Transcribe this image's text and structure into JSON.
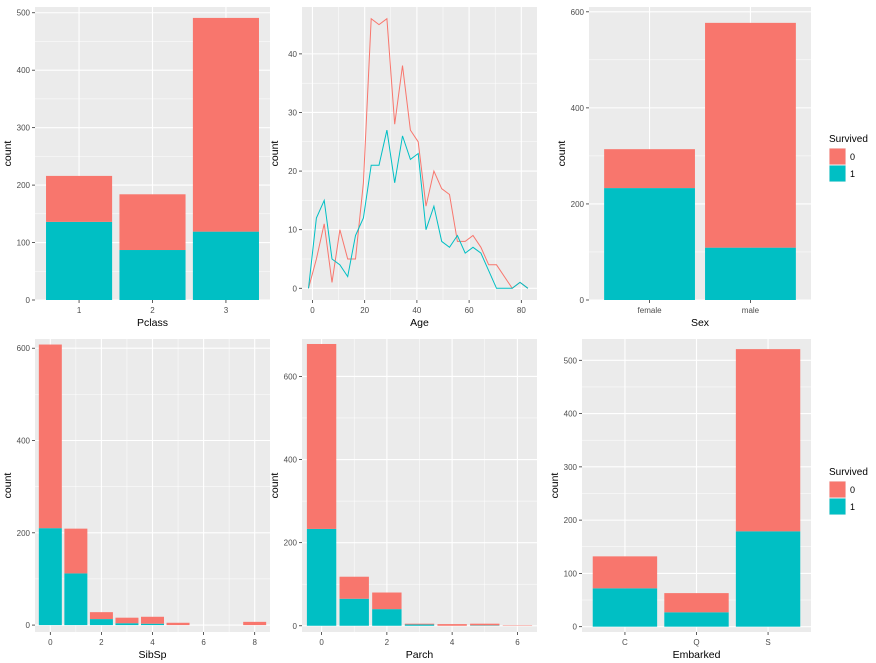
{
  "colors": {
    "died": "#F8766D",
    "survived": "#00BFC4",
    "panel": "#EBEBEB",
    "grid": "#FFFFFF"
  },
  "chart_data": [
    {
      "id": "pclass",
      "type": "bar",
      "xlabel": "Pclass",
      "ylabel": "count",
      "categories": [
        "1",
        "2",
        "3"
      ],
      "ylim": [
        0,
        510
      ],
      "yticks": [
        0,
        100,
        200,
        300,
        400,
        500
      ],
      "series": [
        {
          "name": "0",
          "values": [
            80,
            97,
            372
          ]
        },
        {
          "name": "1",
          "values": [
            136,
            87,
            119
          ]
        }
      ]
    },
    {
      "id": "age",
      "type": "line",
      "xlabel": "Age",
      "ylabel": "count",
      "xlim": [
        -4,
        86
      ],
      "ylim": [
        -2,
        48
      ],
      "xticks": [
        0,
        20,
        40,
        60,
        80
      ],
      "yticks": [
        0,
        10,
        20,
        30,
        40
      ],
      "x": [
        -1.5,
        1.5,
        4.5,
        7.5,
        10.5,
        13.5,
        16.5,
        19.5,
        22.5,
        25.5,
        28.5,
        31.5,
        34.5,
        37.5,
        40.5,
        43.5,
        46.5,
        49.5,
        52.5,
        55.5,
        58.5,
        61.5,
        64.5,
        67.5,
        70.5,
        73.5,
        76.5,
        79.5,
        82.5
      ],
      "series": [
        {
          "name": "0",
          "values": [
            0,
            5,
            11,
            1,
            10,
            5,
            5,
            18,
            46,
            45,
            46,
            28,
            38,
            27,
            25,
            14,
            20,
            17,
            16,
            8,
            8,
            9,
            7,
            4,
            4,
            2,
            0,
            1,
            0
          ]
        },
        {
          "name": "1",
          "values": [
            0,
            12,
            15,
            5,
            4,
            2,
            9,
            12,
            21,
            21,
            27,
            18,
            26,
            22,
            23,
            10,
            14,
            8,
            7,
            9,
            6,
            7,
            6,
            3,
            0,
            0,
            0,
            1,
            0
          ]
        }
      ]
    },
    {
      "id": "sex",
      "type": "bar",
      "xlabel": "Sex",
      "ylabel": "count",
      "categories": [
        "female",
        "male"
      ],
      "ylim": [
        0,
        610
      ],
      "yticks": [
        0,
        200,
        400,
        600
      ],
      "series": [
        {
          "name": "0",
          "values": [
            81,
            468
          ]
        },
        {
          "name": "1",
          "values": [
            233,
            109
          ]
        }
      ]
    },
    {
      "id": "sibsp",
      "type": "bar",
      "xlabel": "SibSp",
      "ylabel": "count",
      "categories": [
        "0",
        "1",
        "2",
        "3",
        "4",
        "5",
        "8"
      ],
      "xnum": [
        0,
        1,
        2,
        3,
        4,
        5,
        8
      ],
      "xlim": [
        -0.6,
        8.6
      ],
      "xticks": [
        0,
        2,
        4,
        6,
        8
      ],
      "ylim": [
        -15,
        620
      ],
      "yticks": [
        0,
        200,
        400,
        600
      ],
      "series": [
        {
          "name": "0",
          "values": [
            398,
            97,
            15,
            12,
            15,
            5,
            7
          ]
        },
        {
          "name": "1",
          "values": [
            210,
            112,
            13,
            4,
            3,
            0,
            0
          ]
        }
      ]
    },
    {
      "id": "parch",
      "type": "bar",
      "xlabel": "Parch",
      "ylabel": "count",
      "categories": [
        "0",
        "1",
        "2",
        "3",
        "4",
        "5",
        "6"
      ],
      "xnum": [
        0,
        1,
        2,
        3,
        4,
        5,
        6
      ],
      "xlim": [
        -0.6,
        6.6
      ],
      "xticks": [
        0,
        2,
        4,
        6
      ],
      "ylim": [
        -15,
        690
      ],
      "yticks": [
        0,
        200,
        400,
        600
      ],
      "series": [
        {
          "name": "0",
          "values": [
            445,
            53,
            40,
            2,
            4,
            4,
            1
          ]
        },
        {
          "name": "1",
          "values": [
            233,
            65,
            40,
            3,
            0,
            1,
            0
          ]
        }
      ]
    },
    {
      "id": "embarked",
      "type": "bar",
      "xlabel": "Embarked",
      "ylabel": "count",
      "categories": [
        "C",
        "Q",
        "S"
      ],
      "ylim": [
        -10,
        540
      ],
      "yticks": [
        0,
        100,
        200,
        300,
        400,
        500
      ],
      "series": [
        {
          "name": "0",
          "values": [
            60,
            36,
            342
          ]
        },
        {
          "name": "1",
          "values": [
            72,
            27,
            179
          ]
        }
      ]
    }
  ],
  "legend": {
    "title": "Survived",
    "items": [
      "0",
      "1"
    ]
  }
}
